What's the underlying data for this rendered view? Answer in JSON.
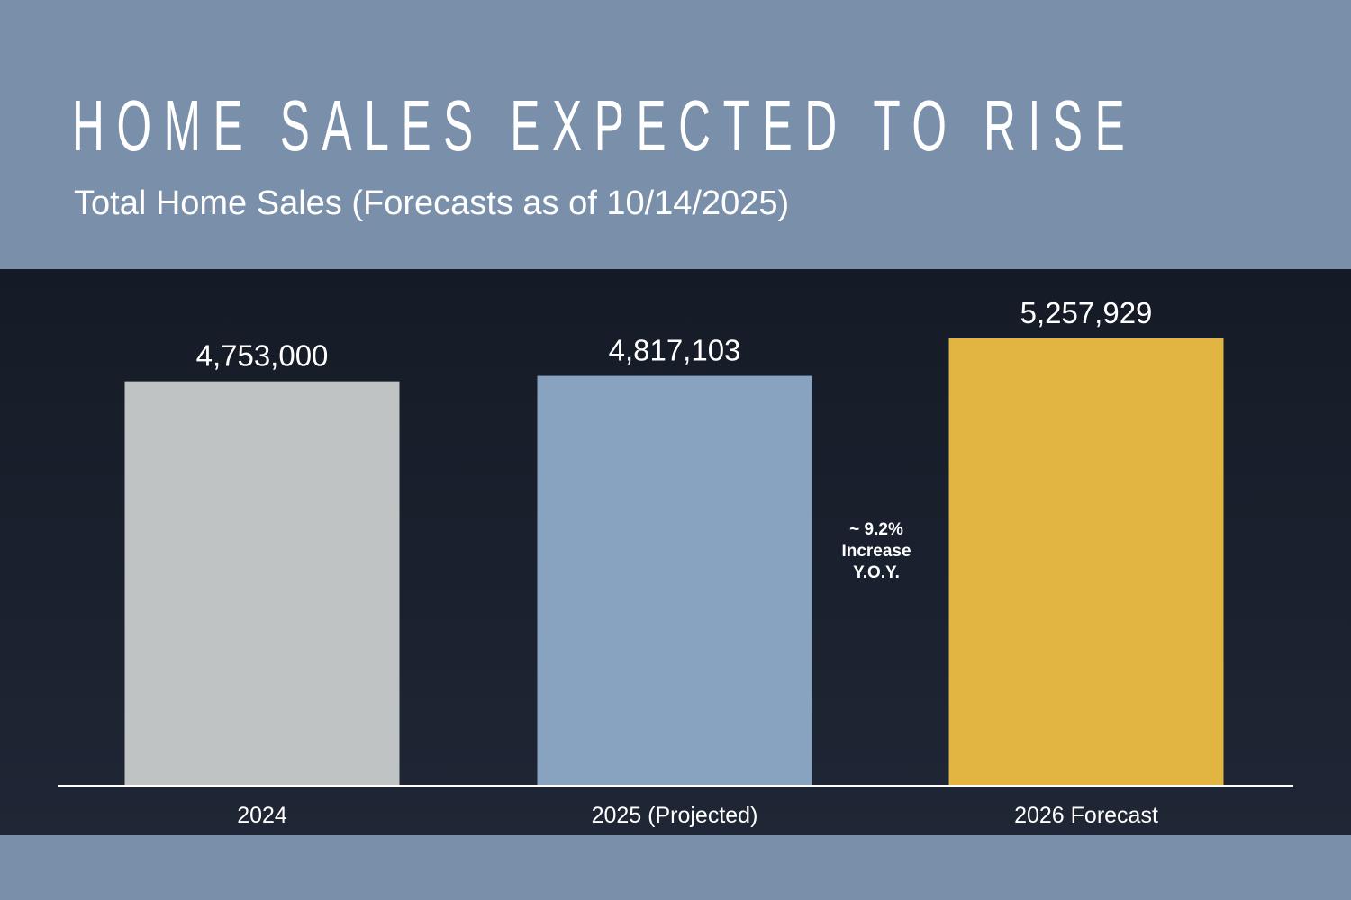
{
  "header": {
    "title": "HOME SALES EXPECTED TO RISE",
    "subtitle": "Total Home Sales (Forecasts as of 10/14/2025)"
  },
  "chart_data": {
    "type": "bar",
    "title": "HOME SALES EXPECTED TO RISE",
    "subtitle": "Total Home Sales (Forecasts as of 10/14/2025)",
    "categories": [
      "2024",
      "2025 (Projected)",
      "2026 Forecast"
    ],
    "values": [
      4753000,
      4817103,
      5257929
    ],
    "value_labels": [
      "4,753,000",
      "4,817,103",
      "5,257,929"
    ],
    "colors": [
      "#bfc3c4",
      "#88a3c0",
      "#e2b441"
    ],
    "xlabel": "",
    "ylabel": "",
    "ylim": [
      0,
      5257929
    ],
    "grid": false,
    "legend": "none",
    "annotation": {
      "lines": [
        "~ 9.2%",
        "Increase",
        "Y.O.Y."
      ],
      "position": "between 2025 and 2026 bars"
    }
  },
  "colors": {
    "header_bg": "#7a8faa",
    "panel_bg": "#1b2130",
    "axis_line": "#ffffff",
    "text": "#ffffff"
  }
}
